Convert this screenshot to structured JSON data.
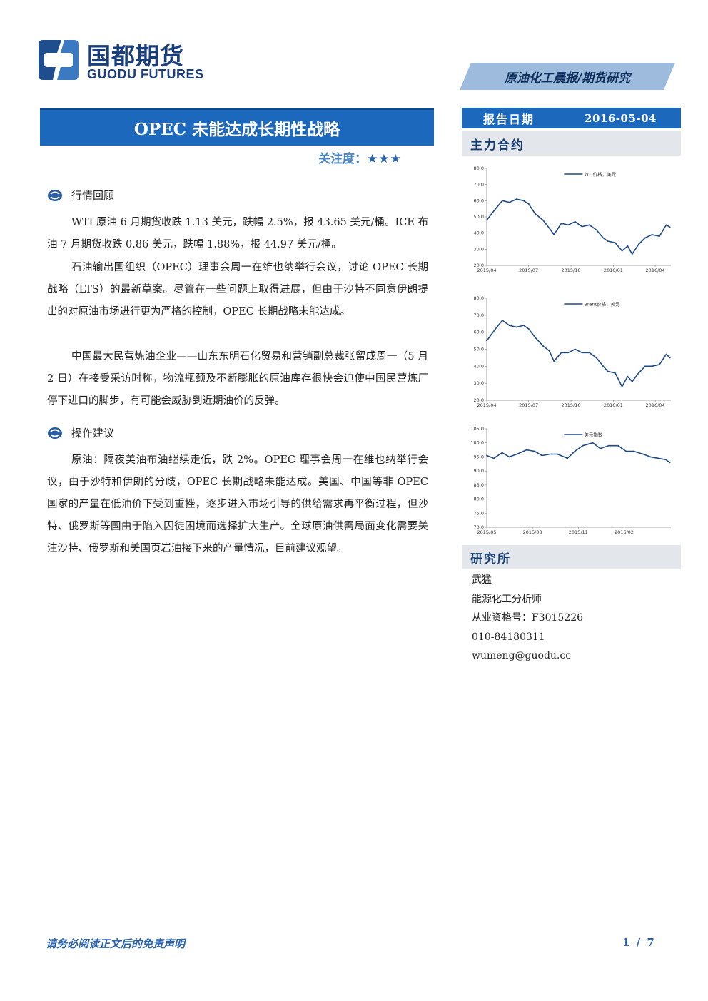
{
  "header": {
    "logo_cn": "国都期货",
    "logo_en": "GUODU FUTURES",
    "report_type": "原油化工晨报/期货研究"
  },
  "title": "OPEC 未能达成长期性战略",
  "attention": {
    "label": "关注度：",
    "stars": "★★★"
  },
  "sections": {
    "review": {
      "heading": "行情回顾",
      "paragraphs": [
        "WTI 原油 6 月期货收跌 1.13 美元，跌幅 2.5%，报 43.65 美元/桶。ICE 布油 7 月期货收跌 0.86 美元，跌幅 1.88%，报 44.97 美元/桶。",
        "石油输出国组织（OPEC）理事会周一在维也纳举行会议，讨论 OPEC 长期战略（LTS）的最新草案。尽管在一些问题上取得进展，但由于沙特不同意伊朗提出的对原油市场进行更为严格的控制，OPEC 长期战略未能达成。",
        "中国最大民营炼油企业——山东东明石化贸易和营销副总裁张留成周一（5 月 2 日）在接受采访时称，物流瓶颈及不断膨胀的原油库存很快会迫使中国民营炼厂停下进口的脚步，有可能会威胁到近期油价的反弹。"
      ]
    },
    "advice": {
      "heading": "操作建议",
      "paragraphs": [
        "原油：隔夜美油布油继续走低，跌 2%。OPEC 理事会周一在维也纳举行会议，由于沙特和伊朗的分歧，OPEC 长期战略未能达成。美国、中国等非 OPEC 国家的产量在低油价下受到重挫，逐步进入市场引导的供给需求再平衡过程，但沙特、俄罗斯等国由于陷入囚徒困境而选择扩大生产。全球原油供需局面变化需要关注沙特、俄罗斯和美国页岩油接下来的产量情况，目前建议观望。"
      ]
    }
  },
  "sidebar": {
    "date_label": "报告日期",
    "date_value": "2016-05-04",
    "contracts_heading": "主力合约",
    "research_heading": "研究所",
    "contact": {
      "name": "武猛",
      "title": "能源化工分析师",
      "license": "从业资格号：F3015226",
      "phone": "010-84180311",
      "email": "wumeng@guodu.cc"
    }
  },
  "chart_data": [
    {
      "type": "line",
      "series": [
        {
          "name": "WTI价格，美元",
          "x": [
            "2015-04-01",
            "2015-04-20",
            "2015-05-05",
            "2015-05-20",
            "2015-06-05",
            "2015-06-20",
            "2015-07-01",
            "2015-07-15",
            "2015-08-01",
            "2015-08-15",
            "2015-08-25",
            "2015-09-10",
            "2015-09-25",
            "2015-10-10",
            "2015-10-25",
            "2015-11-10",
            "2015-11-25",
            "2015-12-10",
            "2015-12-20",
            "2016-01-05",
            "2016-01-20",
            "2016-02-01",
            "2016-02-11",
            "2016-02-25",
            "2016-03-10",
            "2016-03-25",
            "2016-04-10",
            "2016-04-25",
            "2016-05-03"
          ],
          "values": [
            48,
            55,
            60,
            59,
            61,
            60,
            58,
            52,
            48,
            43,
            39,
            46,
            45,
            47,
            44,
            45,
            42,
            37,
            35,
            34,
            29,
            32,
            27,
            33,
            37,
            39,
            38,
            45,
            43.65
          ]
        }
      ],
      "x_ticks": [
        "2015/04",
        "2015/07",
        "2015/10",
        "2016/01",
        "2016/04"
      ],
      "y_ticks": [
        "80.0",
        "70.0",
        "60.0",
        "50.0",
        "40.0",
        "30.0",
        "20.0"
      ],
      "ylim": [
        20,
        80
      ],
      "xlim": [
        "2015-04-01",
        "2016-05-05"
      ],
      "legend": "top-right"
    },
    {
      "type": "line",
      "series": [
        {
          "name": "Brent价格，美元",
          "x": [
            "2015-04-01",
            "2015-04-20",
            "2015-05-05",
            "2015-05-20",
            "2015-06-05",
            "2015-06-20",
            "2015-07-01",
            "2015-07-15",
            "2015-08-01",
            "2015-08-15",
            "2015-08-25",
            "2015-09-10",
            "2015-09-25",
            "2015-10-10",
            "2015-10-25",
            "2015-11-10",
            "2015-11-25",
            "2015-12-10",
            "2015-12-20",
            "2016-01-05",
            "2016-01-20",
            "2016-02-01",
            "2016-02-11",
            "2016-02-25",
            "2016-03-10",
            "2016-03-25",
            "2016-04-10",
            "2016-04-25",
            "2016-05-03"
          ],
          "values": [
            55,
            62,
            67,
            64,
            63,
            64,
            62,
            57,
            52,
            49,
            43,
            48,
            48,
            50,
            48,
            48,
            45,
            40,
            37,
            36,
            28,
            34,
            31,
            36,
            40,
            40,
            41,
            47,
            44.97
          ]
        }
      ],
      "x_ticks": [
        "2015/04",
        "2015/07",
        "2015/10",
        "2016/01",
        "2016/04"
      ],
      "y_ticks": [
        "80.0",
        "70.0",
        "60.0",
        "50.0",
        "40.0",
        "30.0",
        "20.0"
      ],
      "ylim": [
        20,
        80
      ],
      "xlim": [
        "2015-04-01",
        "2016-05-05"
      ],
      "legend": "top-right"
    },
    {
      "type": "line",
      "series": [
        {
          "name": "美元指数",
          "x": [
            "2015-05-01",
            "2015-05-15",
            "2015-06-01",
            "2015-06-15",
            "2015-07-01",
            "2015-07-20",
            "2015-08-05",
            "2015-08-20",
            "2015-09-05",
            "2015-09-20",
            "2015-10-10",
            "2015-10-25",
            "2015-11-10",
            "2015-11-30",
            "2015-12-15",
            "2016-01-01",
            "2016-01-20",
            "2016-02-05",
            "2016-02-20",
            "2016-03-10",
            "2016-03-25",
            "2016-04-10",
            "2016-04-25",
            "2016-05-03"
          ],
          "values": [
            95.5,
            94.5,
            96.5,
            95,
            96,
            97.5,
            97,
            95.5,
            96,
            96,
            94.5,
            97,
            99,
            100,
            98,
            99,
            99,
            97,
            97,
            96,
            95,
            94.5,
            94,
            93
          ]
        }
      ],
      "x_ticks": [
        "2015/05",
        "2015/08",
        "2015/11",
        "2016/02"
      ],
      "y_ticks": [
        "105.0",
        "100.0",
        "95.0",
        "90.0",
        "85.0",
        "80.0",
        "75.0",
        "70.0"
      ],
      "ylim": [
        70,
        105
      ],
      "xlim": [
        "2015-05-01",
        "2016-05-05"
      ],
      "legend": "top-right"
    }
  ],
  "footer": {
    "disclaimer": "请务必阅读正文后的免责声明",
    "page": "1 / 7"
  }
}
